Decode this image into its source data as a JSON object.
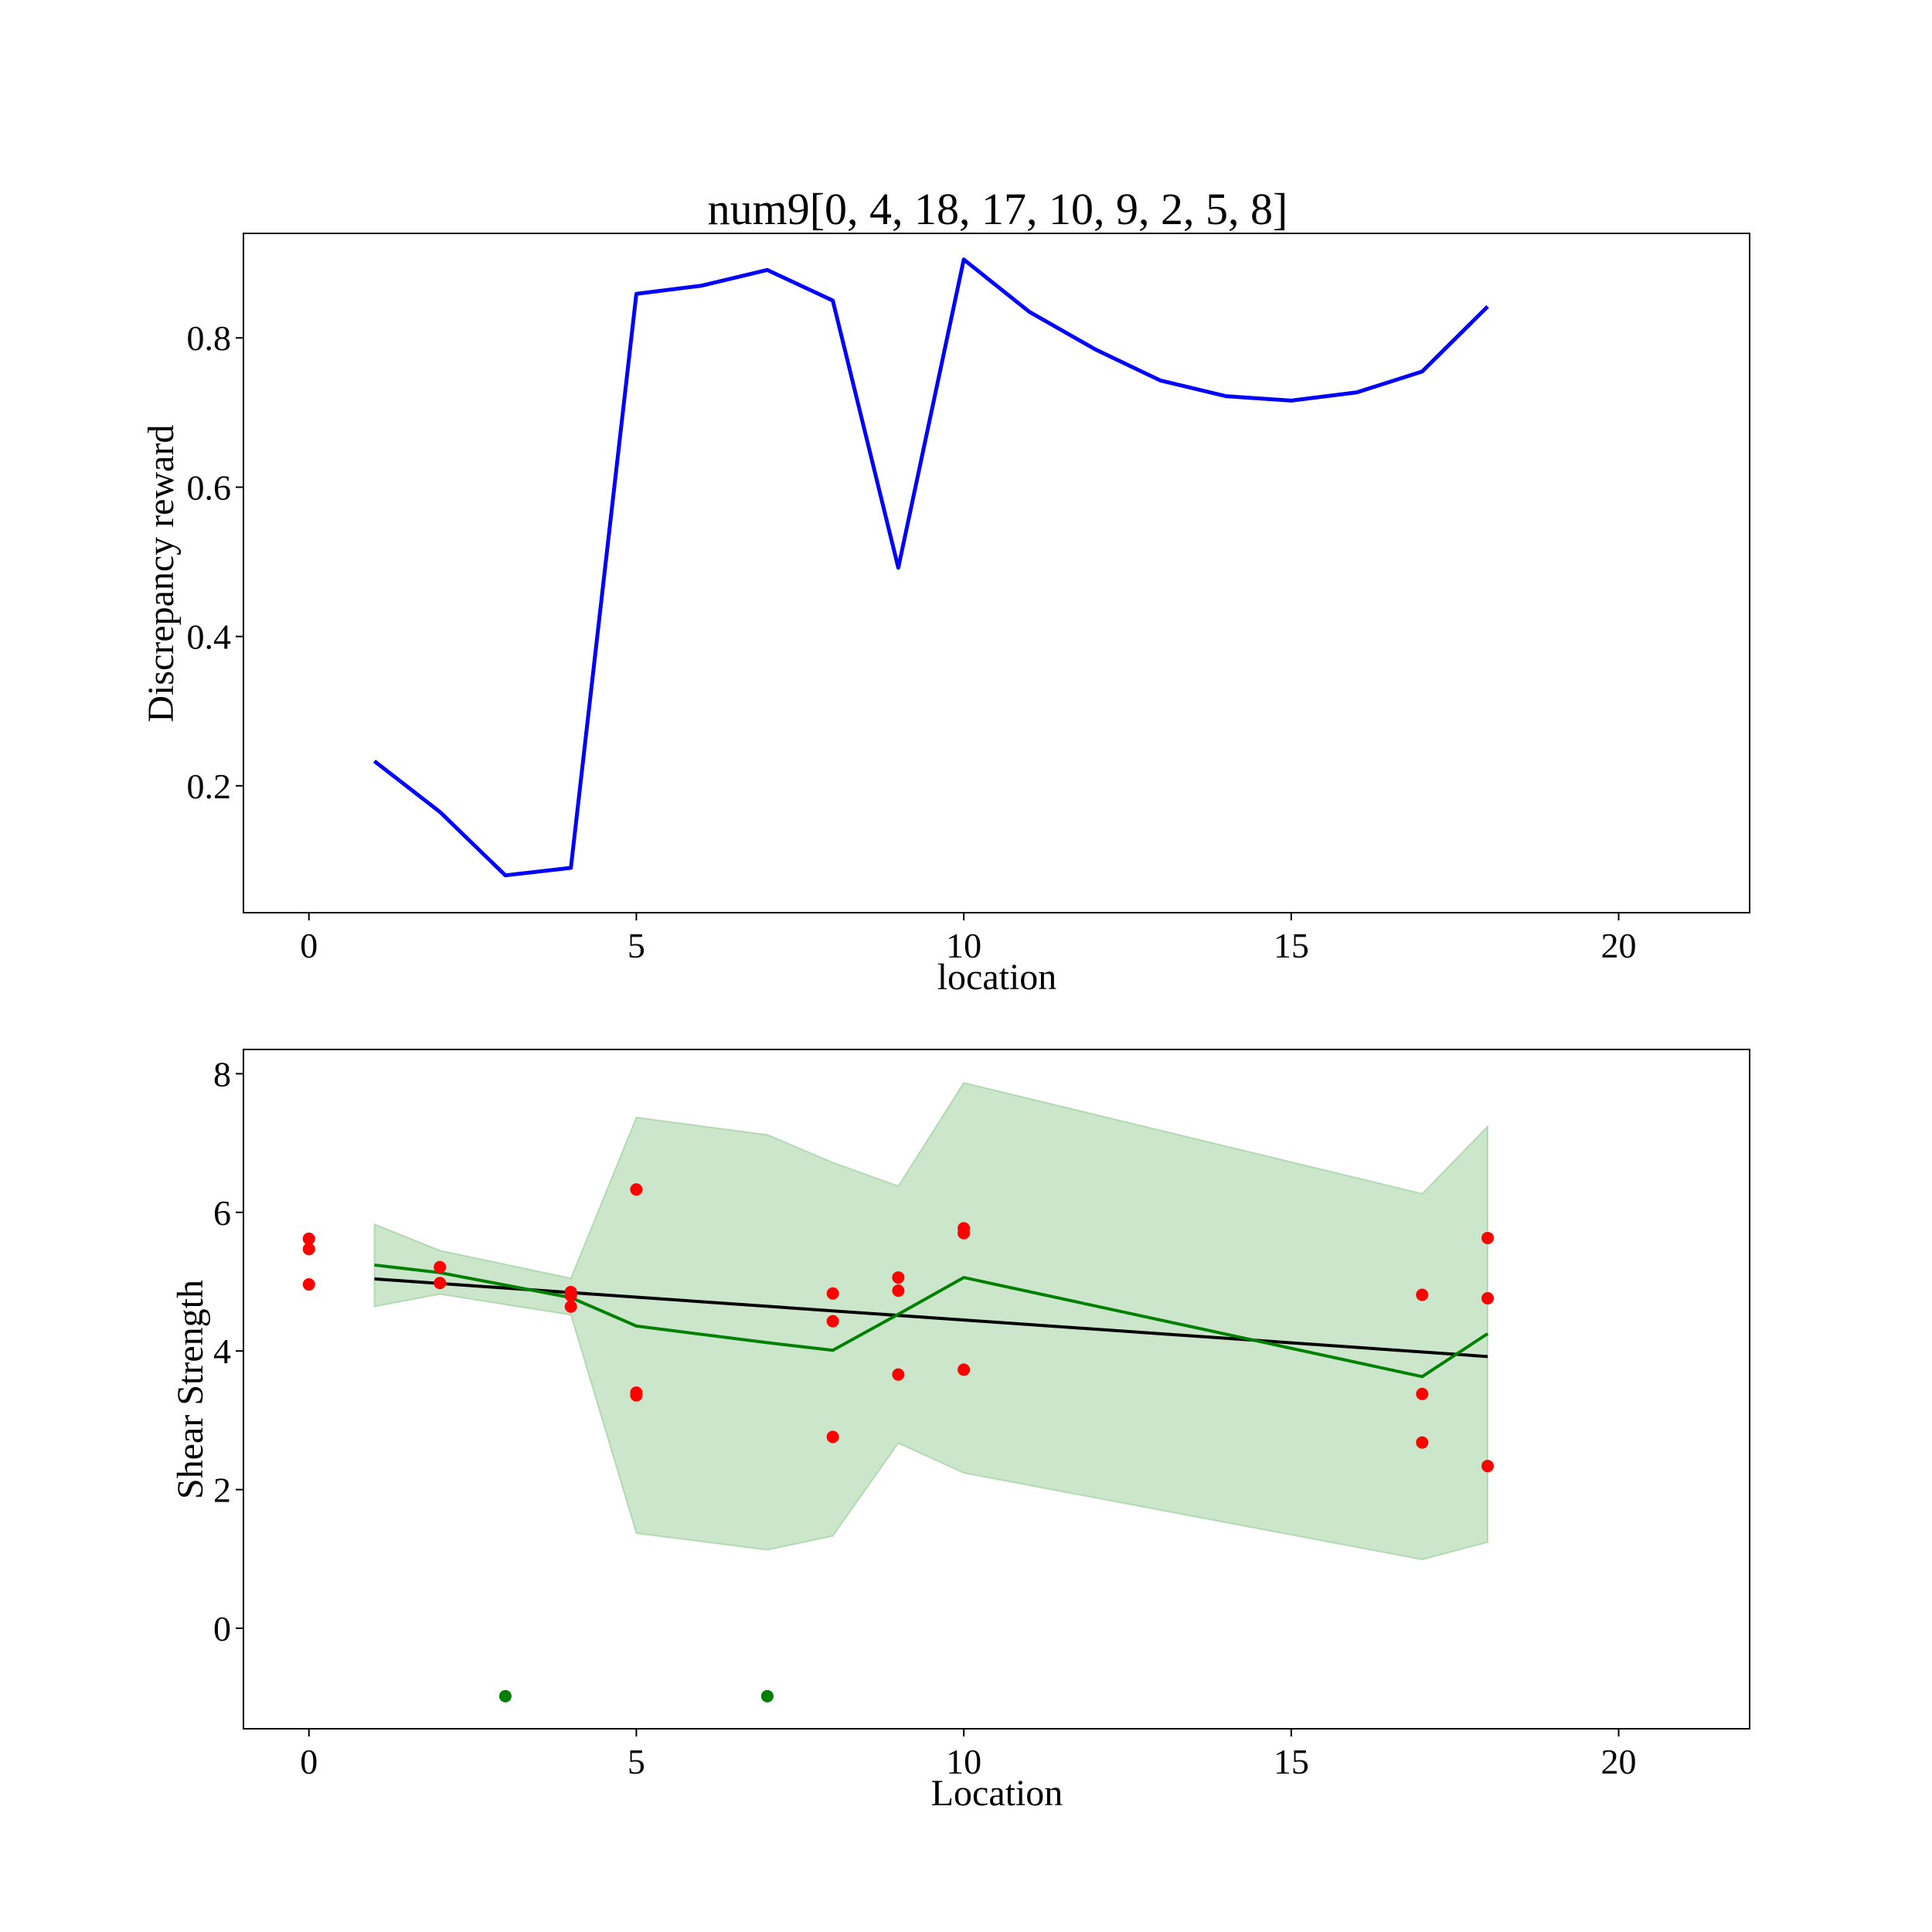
{
  "chart_data": [
    {
      "type": "line",
      "title": "num9[0, 4, 18, 17, 10, 9, 2, 5, 8]",
      "xlabel": "location",
      "ylabel": "Discrepancy reward",
      "xlim": [
        -1,
        22
      ],
      "ylim": [
        0.03,
        0.94
      ],
      "xticks": [
        0,
        5,
        10,
        15,
        20
      ],
      "yticks": [
        0.2,
        0.4,
        0.6,
        0.8
      ],
      "xtick_labels": [
        "0",
        "5",
        "10",
        "15",
        "20"
      ],
      "ytick_labels": [
        "0.2",
        "0.4",
        "0.6",
        "0.8"
      ],
      "grid": false,
      "series": [
        {
          "color": "#0000ff",
          "x": [
            1,
            2,
            3,
            4,
            5,
            6,
            7,
            8,
            9,
            10,
            11,
            12,
            13,
            14,
            15,
            16,
            17,
            18
          ],
          "y": [
            0.233,
            0.165,
            0.08,
            0.09,
            0.859,
            0.87,
            0.891,
            0.85,
            0.492,
            0.905,
            0.835,
            0.785,
            0.743,
            0.722,
            0.716,
            0.727,
            0.755,
            0.842
          ]
        }
      ]
    },
    {
      "type": "scatter",
      "title": "",
      "xlabel": "Location",
      "ylabel": "Shear Strength",
      "xlim": [
        -1,
        22
      ],
      "ylim": [
        -1.45,
        8.35
      ],
      "xticks": [
        0,
        5,
        10,
        15,
        20
      ],
      "yticks": [
        0,
        2,
        4,
        6,
        8
      ],
      "xtick_labels": [
        "0",
        "5",
        "10",
        "15",
        "20"
      ],
      "ytick_labels": [
        "0",
        "2",
        "4",
        "6",
        "8"
      ],
      "grid": false,
      "band": {
        "color": "#008000",
        "opacity": 0.2,
        "x": [
          1,
          2,
          4,
          5,
          7,
          8,
          9,
          10,
          17,
          18
        ],
        "upper": [
          5.83,
          5.45,
          5.05,
          7.37,
          7.12,
          6.72,
          6.38,
          7.87,
          6.27,
          7.24
        ],
        "lower": [
          4.64,
          4.82,
          4.52,
          1.37,
          1.13,
          1.33,
          2.67,
          2.24,
          0.99,
          1.24
        ]
      },
      "mean_line": {
        "color": "#008000",
        "x": [
          1,
          2,
          4,
          5,
          7,
          8,
          9,
          10,
          17,
          18
        ],
        "y": [
          5.24,
          5.13,
          4.77,
          4.36,
          4.12,
          4.01,
          4.53,
          5.06,
          3.63,
          4.25
        ]
      },
      "trend_line": {
        "color": "#000000",
        "x": [
          1,
          18
        ],
        "y": [
          5.04,
          3.92
        ]
      },
      "observed_points": {
        "color": "#ff0000",
        "x": [
          0,
          0,
          0,
          2,
          2,
          4,
          4,
          4,
          5,
          5,
          5,
          8,
          8,
          8,
          9,
          9,
          9,
          10,
          10,
          10,
          17,
          17,
          17,
          18,
          18,
          18
        ],
        "y": [
          5.62,
          5.47,
          4.96,
          5.21,
          4.98,
          4.85,
          4.8,
          4.64,
          6.33,
          3.4,
          3.36,
          4.83,
          4.43,
          2.76,
          5.06,
          4.87,
          3.66,
          5.77,
          5.7,
          3.73,
          4.81,
          3.38,
          2.68,
          5.63,
          4.76,
          2.34
        ]
      },
      "selected_points": {
        "color": "#008000",
        "x": [
          3,
          7
        ],
        "y": [
          -0.98,
          -0.98
        ]
      }
    }
  ]
}
